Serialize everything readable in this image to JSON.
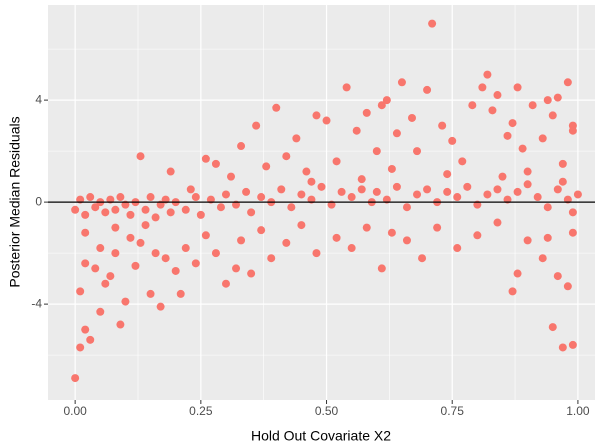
{
  "chart_data": {
    "type": "scatter",
    "x_label": "Hold Out Covariate X2",
    "y_label": "Posterior Median Residuals",
    "xlim": [
      -0.054,
      1.034
    ],
    "ylim": [
      -7.76,
      7.73
    ],
    "xticks": [
      {
        "value": 0,
        "label": "0.00"
      },
      {
        "value": 0.25,
        "label": "0.25"
      },
      {
        "value": 0.5,
        "label": "0.50"
      },
      {
        "value": 0.75,
        "label": "0.75"
      },
      {
        "value": 1,
        "label": "1.00"
      }
    ],
    "yticks": [
      -4,
      0,
      4
    ],
    "x_minor_grid": [
      0.125,
      0.375,
      0.625,
      0.875
    ],
    "y_minor_grid": [
      -6,
      -2,
      2,
      6
    ],
    "grid": true,
    "hline": 0,
    "color": "#F8766D",
    "x": [
      0,
      0.01,
      0.02,
      0.03,
      0.01,
      0.02,
      0.04,
      0.05,
      0.06,
      0.07,
      0.09,
      0.08,
      0.1,
      0.12,
      0.13,
      0.15,
      0.17,
      0.18,
      0.2,
      0.21,
      0.22,
      0.24,
      0.26,
      0.28,
      0.3,
      0.32,
      0.33,
      0.35,
      0.37,
      0.39,
      0.42,
      0.45,
      0.48,
      0.52,
      0.55,
      0.58,
      0.61,
      0.63,
      0.66,
      0.69,
      0.72,
      0.76,
      0.8,
      0.84,
      0.87,
      0.88,
      0.9,
      0.93,
      0.95,
      0.96,
      0.97,
      0.99,
      0.98,
      0.94,
      0.99,
      0.13,
      0.19,
      0.23,
      0.26,
      0.28,
      0.31,
      0.33,
      0.36,
      0.38,
      0.4,
      0.42,
      0.44,
      0.46,
      0.48,
      0.5,
      0.52,
      0.54,
      0.56,
      0.58,
      0.6,
      0.61,
      0.62,
      0.64,
      0.65,
      0.67,
      0.68,
      0.7,
      0.71,
      0.73,
      0.75,
      0.77,
      0.79,
      0.81,
      0.82,
      0.83,
      0.84,
      0.86,
      0.87,
      0.88,
      0.89,
      0.91,
      0.93,
      0.94,
      0.95,
      0.96,
      0.97,
      0.98,
      0.99,
      0.99,
      0.9,
      0.85,
      0.74,
      0.63,
      0.57,
      0.47,
      0,
      0.01,
      0.02,
      0.03,
      0.04,
      0.05,
      0.06,
      0.07,
      0.08,
      0.09,
      0.1,
      0.11,
      0.12,
      0.14,
      0.15,
      0.16,
      0.17,
      0.18,
      0.19,
      0.2,
      0.22,
      0.24,
      0.25,
      0.27,
      0.29,
      0.3,
      0.32,
      0.34,
      0.35,
      0.37,
      0.39,
      0.41,
      0.43,
      0.45,
      0.47,
      0.49,
      0.51,
      0.53,
      0.55,
      0.57,
      0.59,
      0.6,
      0.62,
      0.64,
      0.66,
      0.68,
      0.7,
      0.72,
      0.74,
      0.76,
      0.78,
      0.8,
      0.82,
      0.84,
      0.86,
      0.88,
      0.9,
      0.92,
      0.94,
      0.96,
      0.98,
      1.0,
      0.99,
      0.97,
      0.02,
      0.05,
      0.08,
      0.11,
      0.14,
      0.16
    ],
    "values": [
      -6.9,
      -5.7,
      -5.0,
      -5.4,
      -3.5,
      -2.4,
      -2.6,
      -4.3,
      -3.2,
      -2.9,
      -4.8,
      -2.0,
      -3.9,
      -2.5,
      -1.6,
      -3.6,
      -4.1,
      -2.2,
      -2.7,
      -3.6,
      -1.8,
      -2.4,
      -1.3,
      -2.0,
      -3.2,
      -2.6,
      -1.5,
      -2.8,
      -1.1,
      -2.2,
      -1.6,
      -0.9,
      -2.0,
      -1.4,
      -1.8,
      -1.0,
      -2.6,
      -1.2,
      -1.5,
      -2.2,
      -1.0,
      -1.8,
      -1.3,
      -0.8,
      -3.5,
      -2.8,
      -1.5,
      -2.2,
      -4.9,
      -2.9,
      -5.7,
      -5.6,
      -3.3,
      -1.4,
      -1.2,
      1.8,
      1.2,
      0.5,
      1.7,
      1.5,
      1.0,
      2.2,
      3.0,
      1.4,
      3.7,
      1.8,
      2.5,
      1.2,
      3.4,
      3.2,
      1.6,
      4.5,
      2.8,
      3.5,
      2.0,
      3.8,
      4.0,
      2.7,
      4.7,
      3.3,
      2.0,
      4.4,
      7.0,
      3.0,
      2.4,
      1.6,
      3.8,
      4.5,
      5.0,
      3.6,
      4.2,
      2.6,
      3.1,
      4.5,
      2.1,
      3.8,
      2.5,
      4.0,
      3.4,
      4.1,
      1.5,
      4.7,
      3.0,
      2.8,
      1.2,
      1.0,
      1.1,
      1.3,
      0.9,
      0.8,
      -0.3,
      0.1,
      -0.5,
      0.2,
      -0.2,
      0,
      -0.4,
      0.1,
      -0.3,
      0.2,
      -0.1,
      -0.5,
      0,
      -0.3,
      0.2,
      -0.6,
      -0.1,
      0.1,
      -0.4,
      0,
      -0.3,
      0.2,
      -0.5,
      0.1,
      -0.2,
      0.3,
      -0.1,
      0.4,
      -0.4,
      0.2,
      0,
      0.5,
      -0.2,
      0.3,
      0.1,
      0.6,
      -0.1,
      0.4,
      0.2,
      0.5,
      0,
      0.4,
      0.1,
      0.6,
      -0.2,
      0.3,
      0.5,
      0,
      0.4,
      0.2,
      0.6,
      -0.1,
      0.3,
      0.5,
      0.1,
      0.4,
      0.7,
      0.2,
      -0.2,
      0.5,
      0.1,
      0.3,
      -0.4,
      0.8,
      -1.2,
      -1.8,
      -1.0,
      -1.4,
      -0.9,
      -2.0
    ]
  }
}
